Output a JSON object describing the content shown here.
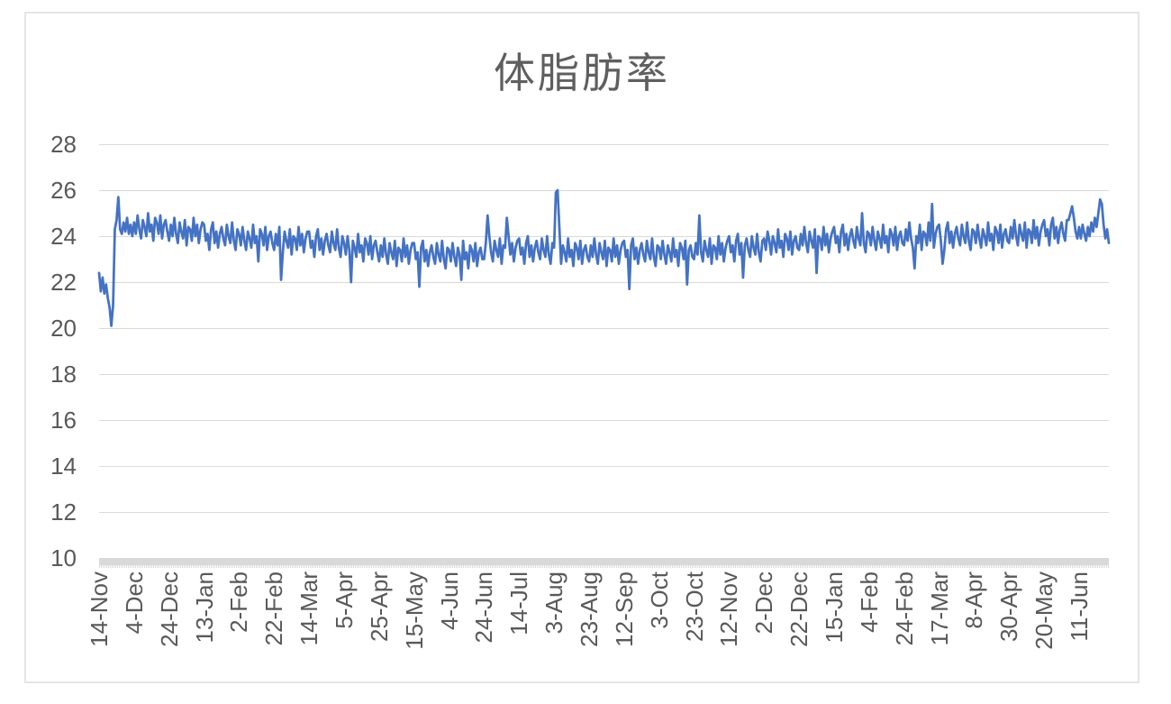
{
  "chart_data": {
    "type": "line",
    "title": "体脂肪率",
    "xlabel": "",
    "ylabel": "",
    "ylim": [
      10,
      28
    ],
    "y_tick_step": 2,
    "y_tick_labels": [
      "28",
      "26",
      "24",
      "22",
      "20",
      "18",
      "16",
      "14",
      "12",
      "10"
    ],
    "x_tick_labels": [
      "14-Nov",
      "4-Dec",
      "24-Dec",
      "13-Jan",
      "2-Feb",
      "22-Feb",
      "14-Mar",
      "5-Apr",
      "25-Apr",
      "15-May",
      "4-Jun",
      "24-Jun",
      "14-Jul",
      "3-Aug",
      "23-Aug",
      "12-Sep",
      "3-Oct",
      "23-Oct",
      "12-Nov",
      "2-Dec",
      "22-Dec",
      "15-Jan",
      "4-Feb",
      "24-Feb",
      "17-Mar",
      "8-Apr",
      "30-Apr",
      "20-May",
      "11-Jun"
    ],
    "x_tick_interval_points": 20,
    "grid": "horizontal",
    "legend": "none",
    "colors": {
      "series_line": "#4472C4",
      "gridline": "#D9D9D9",
      "axis_band": "#D9D9D9",
      "label_text": "#595959",
      "title_text": "#5F5F5F",
      "frame_border": "#E5E5E5",
      "background": "#FFFFFF"
    },
    "series": [
      {
        "name": "体脂肪率",
        "values": [
          22.4,
          21.6,
          22.2,
          21.5,
          21.9,
          21.3,
          20.9,
          20.1,
          21.0,
          24.3,
          24.7,
          25.7,
          24.3,
          24.1,
          24.6,
          24.2,
          24.8,
          24.1,
          24.5,
          24.0,
          24.6,
          24.1,
          24.9,
          24.3,
          23.9,
          24.7,
          24.4,
          24.0,
          25.0,
          24.2,
          24.5,
          23.8,
          24.8,
          24.6,
          24.1,
          24.9,
          23.9,
          24.5,
          24.7,
          24.2,
          23.8,
          24.5,
          24.0,
          24.8,
          24.1,
          23.7,
          24.6,
          24.2,
          23.9,
          24.7,
          23.6,
          24.4,
          24.3,
          23.8,
          24.8,
          24.0,
          24.5,
          23.7,
          24.3,
          24.6,
          24.5,
          23.8,
          24.1,
          23.4,
          24.3,
          24.6,
          23.7,
          24.2,
          23.5,
          24.1,
          24.4,
          23.9,
          23.6,
          24.5,
          24.0,
          23.7,
          24.6,
          23.8,
          23.4,
          24.3,
          24.1,
          23.6,
          24.4,
          23.8,
          23.4,
          24.2,
          23.9,
          23.5,
          24.5,
          23.7,
          24.0,
          22.9,
          24.3,
          24.1,
          23.6,
          24.4,
          23.4,
          24.0,
          24.2,
          23.7,
          23.4,
          24.1,
          23.6,
          24.4,
          22.1,
          23.3,
          24.2,
          23.8,
          23.5,
          24.3,
          23.2,
          24.0,
          23.9,
          23.4,
          24.4,
          23.6,
          24.1,
          23.3,
          23.9,
          24.2,
          24.2,
          23.5,
          23.8,
          23.1,
          24.0,
          24.3,
          23.4,
          23.9,
          23.2,
          23.8,
          24.1,
          23.6,
          23.3,
          24.2,
          23.7,
          23.4,
          24.3,
          23.5,
          23.1,
          24.0,
          23.7,
          23.2,
          24.0,
          23.4,
          22.0,
          23.8,
          23.5,
          23.1,
          24.1,
          23.3,
          23.6,
          22.9,
          23.9,
          23.7,
          23.2,
          24.0,
          23.0,
          23.6,
          23.8,
          23.3,
          22.9,
          23.6,
          23.1,
          23.9,
          23.2,
          22.8,
          23.7,
          23.3,
          23.0,
          23.8,
          22.7,
          23.5,
          23.4,
          22.9,
          23.9,
          23.1,
          23.6,
          22.8,
          23.4,
          23.7,
          23.7,
          23.0,
          23.3,
          21.8,
          23.5,
          23.8,
          22.9,
          23.4,
          22.7,
          23.3,
          23.6,
          23.1,
          22.8,
          23.7,
          23.2,
          22.9,
          23.8,
          23.0,
          22.6,
          23.5,
          23.4,
          22.9,
          23.7,
          23.1,
          22.7,
          23.5,
          23.2,
          22.1,
          23.8,
          23.0,
          23.3,
          22.6,
          23.6,
          23.4,
          22.9,
          23.7,
          22.7,
          23.3,
          23.5,
          23.0,
          23.0,
          23.7,
          24.9,
          24.0,
          23.3,
          22.9,
          23.8,
          23.4,
          23.1,
          23.9,
          22.8,
          23.6,
          23.5,
          24.8,
          24.0,
          23.2,
          23.7,
          22.9,
          23.5,
          23.8,
          23.9,
          23.2,
          23.5,
          22.8,
          23.7,
          24.0,
          23.1,
          23.6,
          22.9,
          23.5,
          23.8,
          23.3,
          23.0,
          23.9,
          23.4,
          23.1,
          24.0,
          23.2,
          22.8,
          23.7,
          23.5,
          25.9,
          26.0,
          24.4,
          22.8,
          23.6,
          23.3,
          22.9,
          23.9,
          23.1,
          23.4,
          22.7,
          23.7,
          23.5,
          23.0,
          23.8,
          22.8,
          23.4,
          23.6,
          23.1,
          22.9,
          23.6,
          23.1,
          23.9,
          23.2,
          22.8,
          23.7,
          23.3,
          23.0,
          23.8,
          22.7,
          23.5,
          23.4,
          22.9,
          23.9,
          23.1,
          23.6,
          22.8,
          23.4,
          23.7,
          23.8,
          23.1,
          23.4,
          21.7,
          23.6,
          23.9,
          23.0,
          23.5,
          22.8,
          23.4,
          23.7,
          23.2,
          22.9,
          23.8,
          23.3,
          23.0,
          23.9,
          23.1,
          22.7,
          23.6,
          23.5,
          23.0,
          23.8,
          23.2,
          22.8,
          23.6,
          23.3,
          22.9,
          23.9,
          23.1,
          23.4,
          22.7,
          23.7,
          23.5,
          23.0,
          23.8,
          21.9,
          23.4,
          23.6,
          23.1,
          23.0,
          23.7,
          23.2,
          24.9,
          23.3,
          22.9,
          23.8,
          23.4,
          23.1,
          23.9,
          22.8,
          23.6,
          23.5,
          23.0,
          24.0,
          23.2,
          23.7,
          22.9,
          23.5,
          23.8,
          24.0,
          23.3,
          23.6,
          22.9,
          23.8,
          24.1,
          23.2,
          23.7,
          22.2,
          23.6,
          23.9,
          23.4,
          23.1,
          24.0,
          23.5,
          23.2,
          24.1,
          23.3,
          22.9,
          23.8,
          23.9,
          23.4,
          24.2,
          23.8,
          23.2,
          24.0,
          23.7,
          23.3,
          24.3,
          23.5,
          23.8,
          23.1,
          24.1,
          23.9,
          23.4,
          24.2,
          23.2,
          23.8,
          24.0,
          23.5,
          23.4,
          24.1,
          23.6,
          24.4,
          23.7,
          23.3,
          24.2,
          23.8,
          23.5,
          24.3,
          22.4,
          24.0,
          23.9,
          23.4,
          24.4,
          23.6,
          24.1,
          23.3,
          23.9,
          24.2,
          24.4,
          23.7,
          24.0,
          23.3,
          24.2,
          24.5,
          23.6,
          24.1,
          23.4,
          24.0,
          24.3,
          23.8,
          23.5,
          24.4,
          23.9,
          23.6,
          25.0,
          23.7,
          23.3,
          24.2,
          24.1,
          23.6,
          24.4,
          23.8,
          23.4,
          24.2,
          23.9,
          23.5,
          24.5,
          23.7,
          24.0,
          23.3,
          24.3,
          24.1,
          23.6,
          24.4,
          23.4,
          24.0,
          24.2,
          23.7,
          23.6,
          24.3,
          23.8,
          24.6,
          23.9,
          23.5,
          22.6,
          24.0,
          23.7,
          24.5,
          23.4,
          24.2,
          24.1,
          23.6,
          24.6,
          23.8,
          25.4,
          23.5,
          24.1,
          24.4,
          24.5,
          23.8,
          22.8,
          23.4,
          24.3,
          24.6,
          23.7,
          24.2,
          23.5,
          24.1,
          24.4,
          23.9,
          23.6,
          24.5,
          24.0,
          23.7,
          24.6,
          23.8,
          23.4,
          24.3,
          24.2,
          23.7,
          24.5,
          23.9,
          23.5,
          24.3,
          24.0,
          23.6,
          24.6,
          23.8,
          24.1,
          23.4,
          24.4,
          24.2,
          23.7,
          24.5,
          23.5,
          24.1,
          24.3,
          23.8,
          23.7,
          24.4,
          23.9,
          24.7,
          24.0,
          23.6,
          24.5,
          24.1,
          23.8,
          24.6,
          23.5,
          24.3,
          24.2,
          23.7,
          24.7,
          23.9,
          24.4,
          23.6,
          24.2,
          24.5,
          24.7,
          24.0,
          24.3,
          23.6,
          24.5,
          24.8,
          23.9,
          24.4,
          23.7,
          24.3,
          24.6,
          24.1,
          23.8,
          24.7,
          24.7,
          25.0,
          25.3,
          24.8,
          24.2,
          23.9,
          24.4,
          23.9,
          24.5,
          24.1,
          23.8,
          24.4,
          24.0,
          24.6,
          24.2,
          24.8,
          24.4,
          25.0,
          25.6,
          25.4,
          24.5,
          23.9,
          24.3,
          23.7
        ]
      }
    ]
  }
}
